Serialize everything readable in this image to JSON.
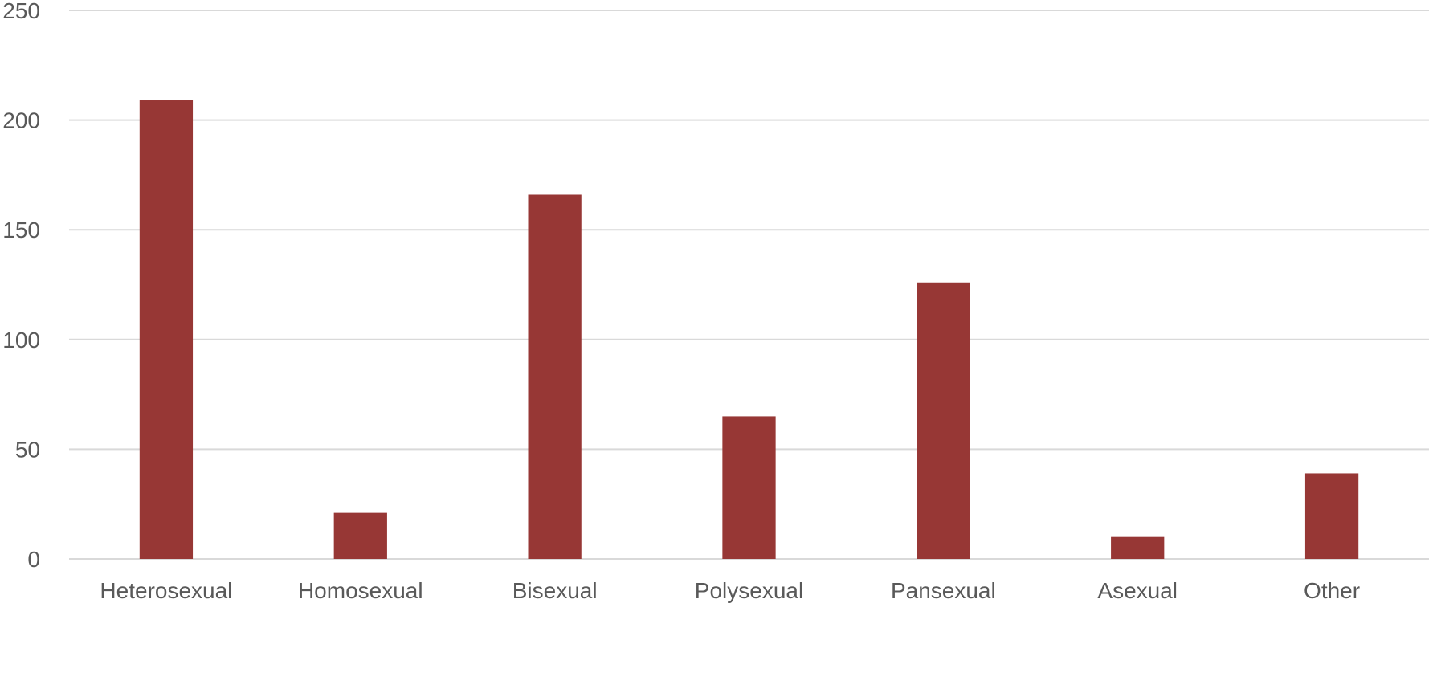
{
  "chart_data": {
    "type": "bar",
    "title": "",
    "xlabel": "",
    "ylabel": "",
    "categories": [
      "Heterosexual",
      "Homosexual",
      "Bisexual",
      "Polysexual",
      "Pansexual",
      "Asexual",
      "Other"
    ],
    "values": [
      209,
      21,
      166,
      65,
      126,
      10,
      39
    ],
    "ylim": [
      0,
      250
    ],
    "yticks": [
      0,
      50,
      100,
      150,
      200,
      250
    ],
    "grid": true,
    "legend": "none",
    "bar_color": "#973735",
    "grid_color": "#d9d9d9",
    "label_color": "#595959"
  }
}
